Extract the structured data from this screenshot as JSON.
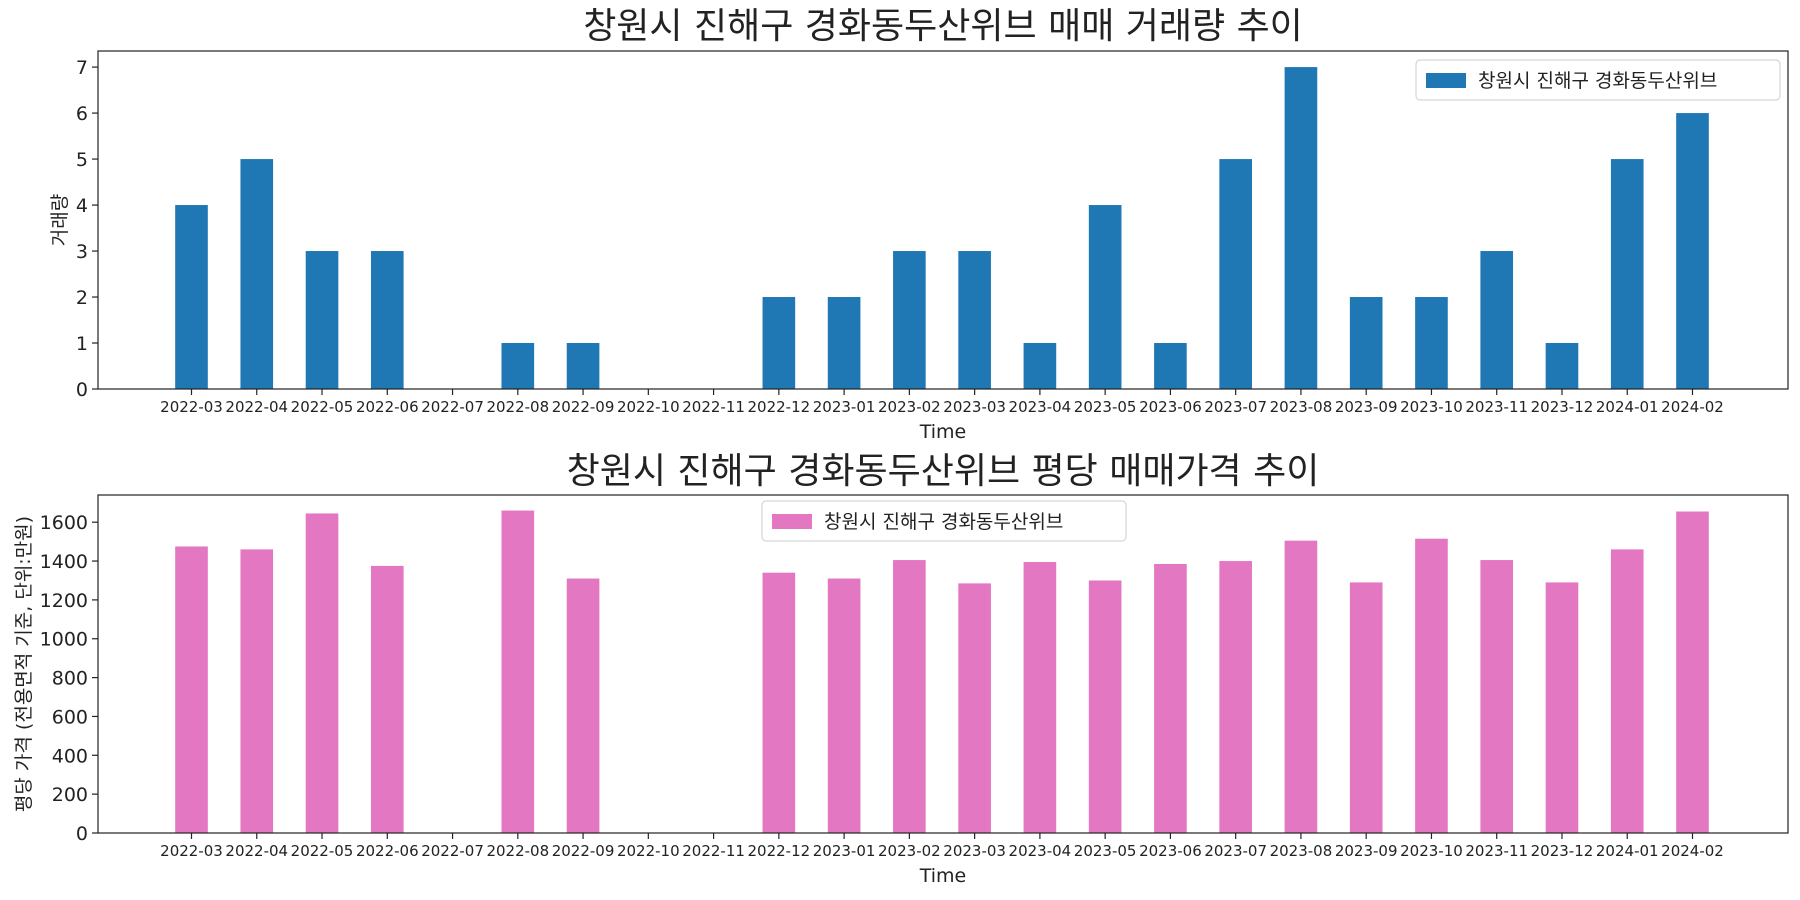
{
  "chart_data": [
    {
      "type": "bar",
      "title": "창원시 진해구 경화동두산위브 매매 거래량 추이",
      "xlabel": "Time",
      "ylabel": "거래량",
      "ylim": [
        0,
        7.35
      ],
      "yticks": [
        0,
        1,
        2,
        3,
        4,
        5,
        6,
        7
      ],
      "legend_position": "upper-right",
      "color": "#1f77b4",
      "categories": [
        "2022-03",
        "2022-04",
        "2022-05",
        "2022-06",
        "2022-07",
        "2022-08",
        "2022-09",
        "2022-10",
        "2022-11",
        "2022-12",
        "2023-01",
        "2023-02",
        "2023-03",
        "2023-04",
        "2023-05",
        "2023-06",
        "2023-07",
        "2023-08",
        "2023-09",
        "2023-10",
        "2023-11",
        "2023-12",
        "2024-01",
        "2024-02"
      ],
      "series": [
        {
          "name": "창원시 진해구 경화동두산위브",
          "values": [
            4,
            5,
            3,
            3,
            0,
            1,
            1,
            0,
            0,
            2,
            2,
            3,
            3,
            1,
            4,
            1,
            5,
            7,
            2,
            2,
            3,
            1,
            5,
            6
          ]
        }
      ]
    },
    {
      "type": "bar",
      "title": "창원시 진해구 경화동두산위브 평당 매매가격 추이",
      "xlabel": "Time",
      "ylabel": "평당 가격 (전용면적 기준, 단위:만원)",
      "ylim": [
        0,
        1740
      ],
      "yticks": [
        0,
        200,
        400,
        600,
        800,
        1000,
        1200,
        1400,
        1600
      ],
      "legend_position": "upper-center",
      "color": "#e377c2",
      "categories": [
        "2022-03",
        "2022-04",
        "2022-05",
        "2022-06",
        "2022-07",
        "2022-08",
        "2022-09",
        "2022-10",
        "2022-11",
        "2022-12",
        "2023-01",
        "2023-02",
        "2023-03",
        "2023-04",
        "2023-05",
        "2023-06",
        "2023-07",
        "2023-08",
        "2023-09",
        "2023-10",
        "2023-11",
        "2023-12",
        "2024-01",
        "2024-02"
      ],
      "series": [
        {
          "name": "창원시 진해구 경화동두산위브",
          "values": [
            1475,
            1460,
            1645,
            1375,
            0,
            1660,
            1310,
            0,
            0,
            1340,
            1310,
            1405,
            1285,
            1395,
            1300,
            1385,
            1400,
            1505,
            1290,
            1515,
            1405,
            1290,
            1460,
            1655
          ]
        }
      ]
    }
  ]
}
